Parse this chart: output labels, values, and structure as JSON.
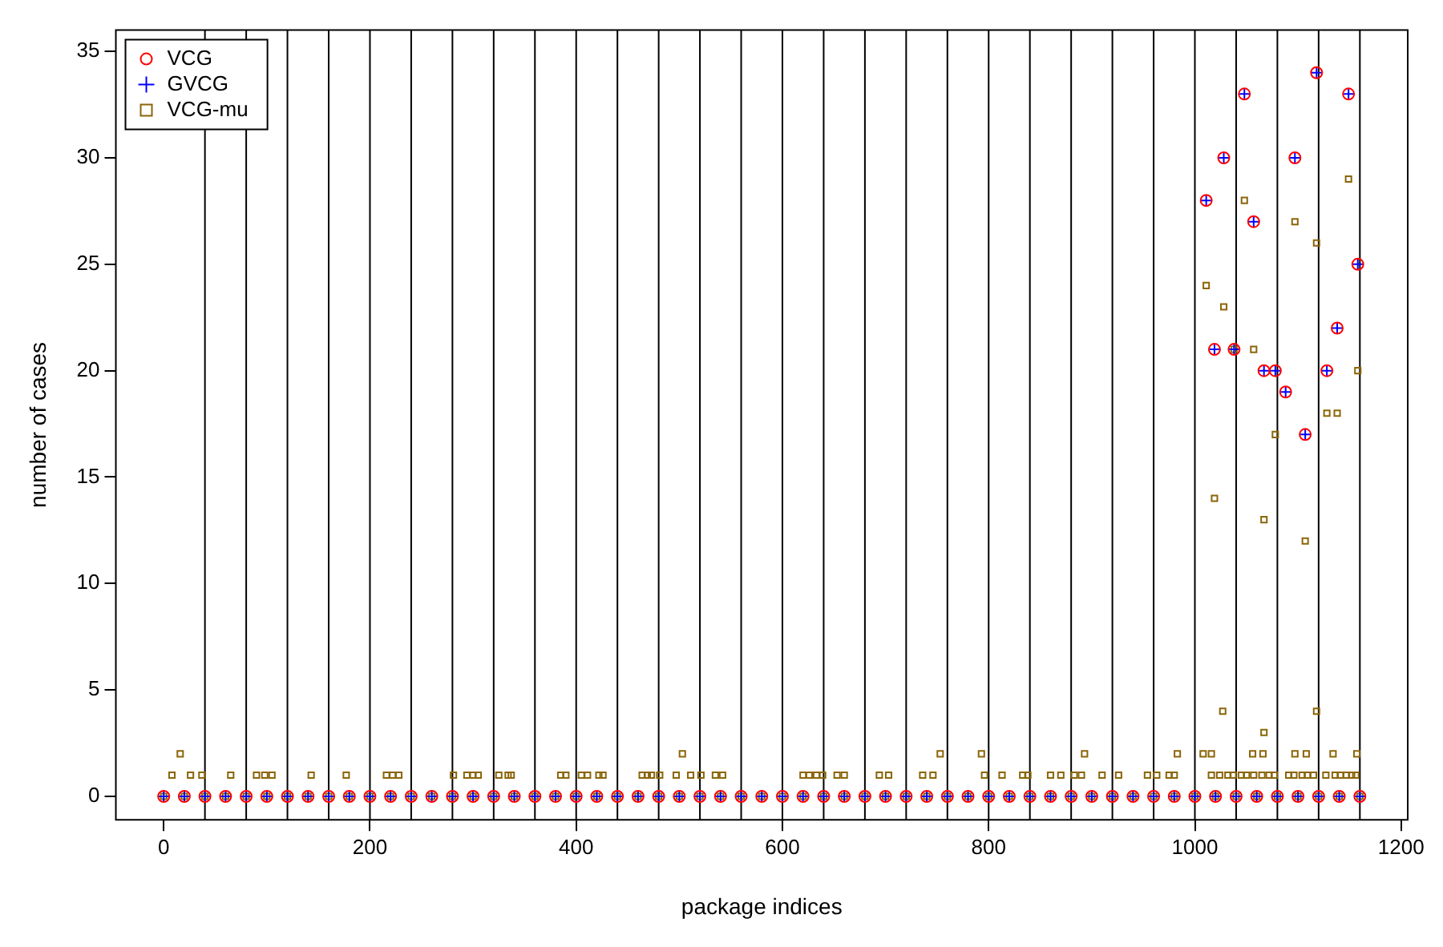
{
  "chart_data": {
    "type": "scatter",
    "xlabel": "package indices",
    "ylabel": "number of cases",
    "xlim": [
      -46.4,
      1206.4
    ],
    "ylim": [
      -1.1,
      36
    ],
    "xticks": [
      0,
      200,
      400,
      600,
      800,
      1000,
      1200
    ],
    "yticks": [
      0,
      5,
      10,
      15,
      20,
      25,
      30,
      35
    ],
    "grid": false,
    "legend": "top left",
    "ref_lines": [
      {
        "axis": "x",
        "value": 40
      },
      {
        "axis": "x",
        "value": 80
      },
      {
        "axis": "x",
        "value": 120
      },
      {
        "axis": "x",
        "value": 160
      },
      {
        "axis": "x",
        "value": 200
      },
      {
        "axis": "x",
        "value": 240
      },
      {
        "axis": "x",
        "value": 280
      },
      {
        "axis": "x",
        "value": 320
      },
      {
        "axis": "x",
        "value": 360
      },
      {
        "axis": "x",
        "value": 400
      },
      {
        "axis": "x",
        "value": 440
      },
      {
        "axis": "x",
        "value": 480
      },
      {
        "axis": "x",
        "value": 520
      },
      {
        "axis": "x",
        "value": 560
      },
      {
        "axis": "x",
        "value": 600
      },
      {
        "axis": "x",
        "value": 640
      },
      {
        "axis": "x",
        "value": 680
      },
      {
        "axis": "x",
        "value": 720
      },
      {
        "axis": "x",
        "value": 760
      },
      {
        "axis": "x",
        "value": 800
      },
      {
        "axis": "x",
        "value": 840
      },
      {
        "axis": "x",
        "value": 880
      },
      {
        "axis": "x",
        "value": 920
      },
      {
        "axis": "x",
        "value": 960
      },
      {
        "axis": "x",
        "value": 1000
      },
      {
        "axis": "x",
        "value": 1040
      },
      {
        "axis": "x",
        "value": 1080
      },
      {
        "axis": "x",
        "value": 1120
      },
      {
        "axis": "x",
        "value": 1160
      }
    ],
    "series": [
      {
        "name": "VCG",
        "color": "#ff0000",
        "marker": "circle",
        "x": [
          0,
          20,
          40,
          60,
          80,
          100,
          120,
          140,
          160,
          180,
          200,
          220,
          240,
          260,
          280,
          300,
          320,
          340,
          360,
          380,
          400,
          420,
          440,
          460,
          480,
          500,
          520,
          540,
          560,
          580,
          600,
          620,
          640,
          660,
          680,
          700,
          720,
          740,
          760,
          780,
          800,
          820,
          840,
          860,
          880,
          900,
          920,
          940,
          960,
          980,
          1000,
          1020,
          1040,
          1060,
          1080,
          1100,
          1120,
          1140,
          1160,
          1011,
          1019,
          1028,
          1038,
          1048,
          1057,
          1067,
          1078,
          1088,
          1097,
          1107,
          1118,
          1128,
          1138,
          1149,
          1158
        ],
        "values": [
          0,
          0,
          0,
          0,
          0,
          0,
          0,
          0,
          0,
          0,
          0,
          0,
          0,
          0,
          0,
          0,
          0,
          0,
          0,
          0,
          0,
          0,
          0,
          0,
          0,
          0,
          0,
          0,
          0,
          0,
          0,
          0,
          0,
          0,
          0,
          0,
          0,
          0,
          0,
          0,
          0,
          0,
          0,
          0,
          0,
          0,
          0,
          0,
          0,
          0,
          0,
          0,
          0,
          0,
          0,
          0,
          0,
          0,
          0,
          28,
          21,
          30,
          21,
          33,
          27,
          20,
          20,
          19,
          30,
          17,
          34,
          20,
          22,
          33,
          25
        ]
      },
      {
        "name": "GVCG",
        "color": "#0000ff",
        "marker": "cross",
        "x": [
          0,
          20,
          40,
          60,
          80,
          100,
          120,
          140,
          160,
          180,
          200,
          220,
          240,
          260,
          280,
          300,
          320,
          340,
          360,
          380,
          400,
          420,
          440,
          460,
          480,
          500,
          520,
          540,
          560,
          580,
          600,
          620,
          640,
          660,
          680,
          700,
          720,
          740,
          760,
          780,
          800,
          820,
          840,
          860,
          880,
          900,
          920,
          940,
          960,
          980,
          1000,
          1020,
          1040,
          1060,
          1080,
          1100,
          1120,
          1140,
          1160,
          1011,
          1019,
          1028,
          1038,
          1048,
          1057,
          1067,
          1078,
          1088,
          1097,
          1107,
          1118,
          1128,
          1138,
          1149,
          1158
        ],
        "values": [
          0,
          0,
          0,
          0,
          0,
          0,
          0,
          0,
          0,
          0,
          0,
          0,
          0,
          0,
          0,
          0,
          0,
          0,
          0,
          0,
          0,
          0,
          0,
          0,
          0,
          0,
          0,
          0,
          0,
          0,
          0,
          0,
          0,
          0,
          0,
          0,
          0,
          0,
          0,
          0,
          0,
          0,
          0,
          0,
          0,
          0,
          0,
          0,
          0,
          0,
          0,
          0,
          0,
          0,
          0,
          0,
          0,
          0,
          0,
          28,
          21,
          30,
          21,
          33,
          27,
          20,
          20,
          19,
          30,
          17,
          34,
          20,
          22,
          33,
          25
        ]
      },
      {
        "name": "VCG-mu",
        "color": "#8b6508",
        "marker": "square",
        "x": [
          0,
          20,
          40,
          60,
          80,
          100,
          120,
          140,
          160,
          180,
          200,
          220,
          240,
          260,
          280,
          300,
          320,
          340,
          360,
          380,
          400,
          420,
          440,
          460,
          480,
          500,
          520,
          540,
          560,
          580,
          600,
          620,
          640,
          660,
          680,
          700,
          720,
          740,
          760,
          780,
          800,
          820,
          840,
          860,
          880,
          900,
          920,
          940,
          960,
          980,
          1000,
          1020,
          1040,
          1060,
          1080,
          1100,
          1120,
          1140,
          1160,
          8,
          26,
          37,
          65,
          90,
          98,
          105,
          143,
          177,
          216,
          222,
          228,
          281,
          294,
          300,
          305,
          325,
          334,
          337,
          385,
          390,
          405,
          411,
          422,
          426,
          464,
          469,
          473,
          481,
          497,
          511,
          521,
          535,
          542,
          620,
          626,
          633,
          639,
          653,
          660,
          694,
          703,
          736,
          746,
          796,
          813,
          833,
          838,
          860,
          870,
          883,
          890,
          910,
          926,
          954,
          963,
          975,
          980,
          1016,
          1024,
          1032,
          1037,
          1045,
          1050,
          1057,
          1065,
          1072,
          1077,
          1091,
          1096,
          1104,
          1109,
          1115,
          1127,
          1136,
          1141,
          1147,
          1152,
          1156,
          16,
          503,
          753,
          793,
          893,
          983,
          1008,
          1016,
          1056,
          1066,
          1097,
          1108,
          1134,
          1157,
          1067,
          1027,
          1118,
          1011,
          1019,
          1028,
          1038,
          1048,
          1057,
          1067,
          1078,
          1097,
          1107,
          1118,
          1128,
          1138,
          1149,
          1158
        ],
        "values": [
          0,
          0,
          0,
          0,
          0,
          0,
          0,
          0,
          0,
          0,
          0,
          0,
          0,
          0,
          0,
          0,
          0,
          0,
          0,
          0,
          0,
          0,
          0,
          0,
          0,
          0,
          0,
          0,
          0,
          0,
          0,
          0,
          0,
          0,
          0,
          0,
          0,
          0,
          0,
          0,
          0,
          0,
          0,
          0,
          0,
          0,
          0,
          0,
          0,
          0,
          0,
          0,
          0,
          0,
          0,
          0,
          0,
          0,
          0,
          1,
          1,
          1,
          1,
          1,
          1,
          1,
          1,
          1,
          1,
          1,
          1,
          1,
          1,
          1,
          1,
          1,
          1,
          1,
          1,
          1,
          1,
          1,
          1,
          1,
          1,
          1,
          1,
          1,
          1,
          1,
          1,
          1,
          1,
          1,
          1,
          1,
          1,
          1,
          1,
          1,
          1,
          1,
          1,
          1,
          1,
          1,
          1,
          1,
          1,
          1,
          1,
          1,
          1,
          1,
          1,
          1,
          1,
          1,
          1,
          1,
          1,
          1,
          1,
          1,
          1,
          1,
          1,
          1,
          1,
          1,
          1,
          1,
          1,
          1,
          1,
          1,
          1,
          1,
          2,
          2,
          2,
          2,
          2,
          2,
          2,
          2,
          2,
          2,
          2,
          2,
          2,
          2,
          3,
          4,
          4,
          24,
          14,
          23,
          21,
          28,
          21,
          13,
          17,
          27,
          12,
          26,
          18,
          18,
          29,
          20
        ]
      }
    ]
  }
}
